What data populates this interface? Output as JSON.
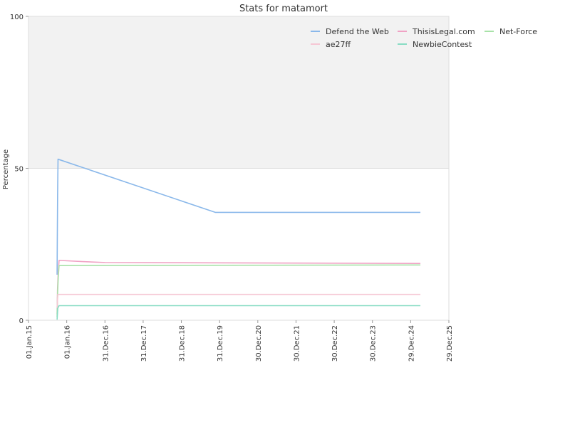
{
  "chart_data": {
    "type": "line",
    "title": "Stats for matamort",
    "ylabel": "Percentage",
    "ylim": [
      0,
      100
    ],
    "yticks": [
      "0",
      "50",
      "100"
    ],
    "xlim": [
      "2015-01-01",
      "2025-12-29"
    ],
    "xticks": [
      {
        "date": "2015-01-01",
        "label": "01.Jan.15"
      },
      {
        "date": "2016-01-01",
        "label": "01.Jan.16"
      },
      {
        "date": "2016-12-31",
        "label": "31.Dec.16"
      },
      {
        "date": "2017-12-31",
        "label": "31.Dec.17"
      },
      {
        "date": "2018-12-31",
        "label": "31.Dec.18"
      },
      {
        "date": "2019-12-31",
        "label": "31.Dec.19"
      },
      {
        "date": "2020-12-30",
        "label": "30.Dec.20"
      },
      {
        "date": "2021-12-30",
        "label": "30.Dec.21"
      },
      {
        "date": "2022-12-30",
        "label": "30.Dec.22"
      },
      {
        "date": "2023-12-30",
        "label": "30.Dec.23"
      },
      {
        "date": "2024-12-29",
        "label": "29.Dec.24"
      },
      {
        "date": "2025-12-29",
        "label": "29.Dec.25"
      }
    ],
    "shaded_band": {
      "y_from": 50,
      "y_to": 100,
      "color": "#f2f2f2"
    },
    "legend_position": "top-right",
    "series": [
      {
        "name": "Defend the Web",
        "color": "#8ab8ea",
        "points": [
          [
            "2015-10-01",
            15
          ],
          [
            "2015-10-03",
            26
          ],
          [
            "2015-10-06",
            41
          ],
          [
            "2015-10-10",
            53
          ],
          [
            "2019-11-20",
            35.5
          ],
          [
            "2025-04-01",
            35.5
          ]
        ]
      },
      {
        "name": "ThisisLegal.com",
        "color": "#f0a2c4",
        "points": [
          [
            "2015-10-01",
            2
          ],
          [
            "2015-10-05",
            10
          ],
          [
            "2015-10-12",
            16
          ],
          [
            "2015-10-20",
            19.7
          ],
          [
            "2016-06-01",
            19.3
          ],
          [
            "2017-01-01",
            19
          ],
          [
            "2025-04-01",
            18.7
          ]
        ]
      },
      {
        "name": "Net-Force",
        "color": "#a8e2a8",
        "points": [
          [
            "2015-10-01",
            1
          ],
          [
            "2015-10-06",
            9
          ],
          [
            "2015-10-12",
            14
          ],
          [
            "2015-10-20",
            18
          ],
          [
            "2025-04-01",
            18.2
          ]
        ]
      },
      {
        "name": "ae27ff",
        "color": "#f6c7d4",
        "points": [
          [
            "2015-10-01",
            4
          ],
          [
            "2015-10-08",
            8.5
          ],
          [
            "2025-04-01",
            8.5
          ]
        ]
      },
      {
        "name": "NewbieContest",
        "color": "#88dcc4",
        "points": [
          [
            "2015-10-01",
            0.2
          ],
          [
            "2015-10-08",
            4
          ],
          [
            "2015-10-20",
            4.8
          ],
          [
            "2025-04-01",
            4.8
          ]
        ]
      }
    ]
  }
}
